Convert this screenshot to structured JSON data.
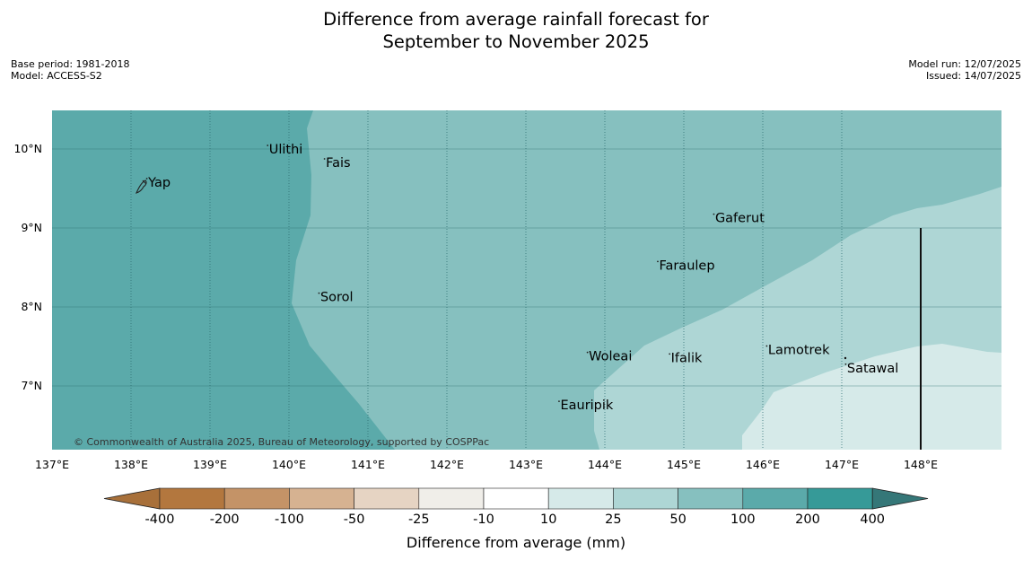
{
  "title_line1": "Difference from average rainfall forecast for",
  "title_line2": "September to November 2025",
  "base_period": "Base period: 1981-2018",
  "model": "Model: ACCESS-S2",
  "model_run": "Model run: 12/07/2025",
  "issued": "Issued: 14/07/2025",
  "copyright": "© Commonwealth of Australia 2025, Bureau of Meteorology, supported by COSPPac",
  "map": {
    "lon_range": [
      137,
      149
    ],
    "lat_range": [
      6.2,
      10.5
    ],
    "lon_ticks": [
      "137°E",
      "138°E",
      "139°E",
      "140°E",
      "141°E",
      "142°E",
      "143°E",
      "144°E",
      "145°E",
      "146°E",
      "147°E",
      "148°E"
    ],
    "lat_ticks": [
      "10°N",
      "9°N",
      "8°N",
      "7°N"
    ],
    "islands": [
      {
        "name": "Yap",
        "lon": 138.2,
        "lat": 9.5
      },
      {
        "name": "Ulithi",
        "lon": 139.73,
        "lat": 9.92
      },
      {
        "name": "Fais",
        "lon": 140.45,
        "lat": 9.75
      },
      {
        "name": "Gaferut",
        "lon": 145.38,
        "lat": 9.05
      },
      {
        "name": "Faraulep",
        "lon": 144.67,
        "lat": 8.45
      },
      {
        "name": "Sorol",
        "lon": 140.38,
        "lat": 8.05
      },
      {
        "name": "Lamotrek",
        "lon": 146.05,
        "lat": 7.38
      },
      {
        "name": "Woleai",
        "lon": 143.78,
        "lat": 7.3
      },
      {
        "name": "Ifalik",
        "lon": 144.82,
        "lat": 7.28
      },
      {
        "name": "Satawal",
        "lon": 147.05,
        "lat": 7.15
      },
      {
        "name": "Eauripik",
        "lon": 143.42,
        "lat": 6.68
      }
    ]
  },
  "legend": {
    "label": "Difference from average (mm)",
    "ticks": [
      "-400",
      "-200",
      "-100",
      "-50",
      "-25",
      "-10",
      "10",
      "25",
      "50",
      "100",
      "200",
      "400"
    ],
    "colors": [
      "#a8703a",
      "#b3773e",
      "#c49367",
      "#d6b291",
      "#e6d4c3",
      "#f0eee9",
      "#ffffff",
      "#d6eae9",
      "#aed6d5",
      "#86c0bf",
      "#5baaaa",
      "#369a98",
      "#357778"
    ]
  }
}
